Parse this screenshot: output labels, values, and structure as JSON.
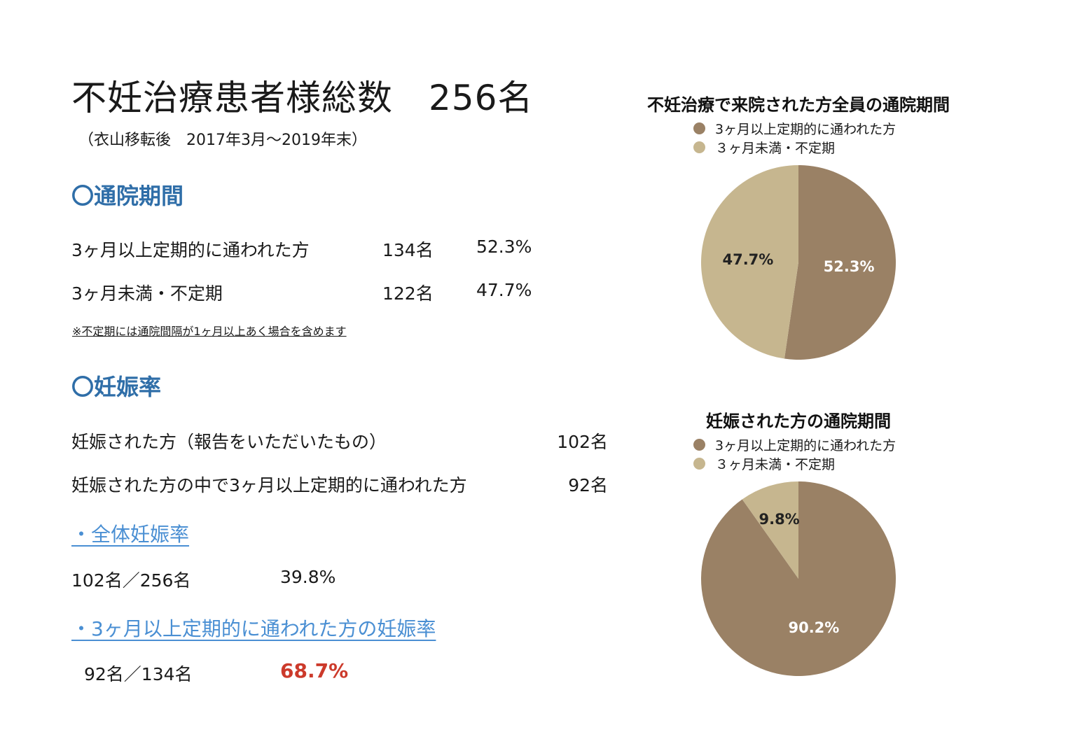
{
  "header": {
    "title": "不妊治療患者様総数　256名",
    "subtitle": "（衣山移転後　2017年3月～2019年末）"
  },
  "visit_period": {
    "heading": "〇通院期間",
    "rows": [
      {
        "label": "3ヶ月以上定期的に通われた方",
        "count": "134名",
        "percent": "52.3%"
      },
      {
        "label": "3ヶ月未満・不定期",
        "count": "122名",
        "percent": "47.7%"
      }
    ],
    "note": "※不定期には通院間隔が1ヶ月以上あく場合を含めます"
  },
  "pregnancy": {
    "heading": "〇妊娠率",
    "rows": [
      {
        "label": "妊娠された方（報告をいただいたもの）",
        "count": "102名"
      },
      {
        "label": "妊娠された方の中で3ヶ月以上定期的に通われた方",
        "count": "92名"
      }
    ],
    "overall": {
      "link": "・全体妊娠率",
      "ratio": "102名／256名",
      "rate": "39.8%"
    },
    "regular": {
      "link": "・3ヶ月以上定期的に通われた方の妊娠率",
      "ratio": "92名／134名",
      "rate": "68.7%"
    }
  },
  "colors": {
    "regular": "#9a8165",
    "irregular": "#c6b68f",
    "heading": "#2f6ea8",
    "link": "#4a8fd3",
    "highlight": "#cc3a2b"
  },
  "chart_data": [
    {
      "type": "pie",
      "title": "不妊治療で来院された方全員の通院期間",
      "legend": [
        "3ヶ月以上定期的に通われた方",
        "３ヶ月未満・不定期"
      ],
      "categories": [
        "3ヶ月以上定期的に通われた方",
        "３ヶ月未満・不定期"
      ],
      "values": [
        52.3,
        47.7
      ],
      "labels": [
        "52.3%",
        "47.7%"
      ],
      "legend_position": "top"
    },
    {
      "type": "pie",
      "title": "妊娠された方の通院期間",
      "legend": [
        "3ヶ月以上定期的に通われた方",
        "３ヶ月未満・不定期"
      ],
      "categories": [
        "3ヶ月以上定期的に通われた方",
        "３ヶ月未満・不定期"
      ],
      "values": [
        90.2,
        9.8
      ],
      "labels": [
        "90.2%",
        "9.8%"
      ],
      "legend_position": "top"
    }
  ]
}
